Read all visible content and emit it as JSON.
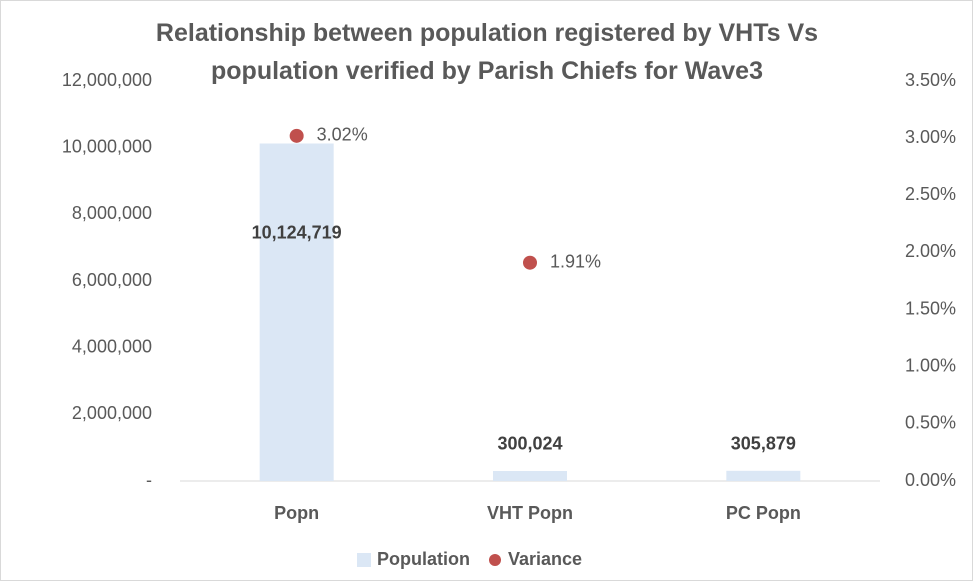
{
  "chart_data": {
    "type": "bar",
    "title": "Relationship between population registered by VHTs Vs population verified by Parish Chiefs for Wave3",
    "categories": [
      "Popn",
      "VHT Popn",
      "PC Popn"
    ],
    "series": [
      {
        "name": "Population",
        "color": "#dbe7f5",
        "values": [
          10124719,
          300024,
          305879
        ],
        "value_labels": [
          "10,124,719",
          "300,024",
          "305,879"
        ]
      },
      {
        "name": "Variance",
        "color": "#c0504d",
        "type": "scatter",
        "axis": "y2",
        "values": [
          3.02,
          1.91,
          null
        ],
        "value_labels": [
          "3.02%",
          "1.91%",
          null
        ]
      }
    ],
    "ylim": [
      0,
      12000000
    ],
    "yticks": [
      {
        "value": 0,
        "label": "-"
      },
      {
        "value": 2000000,
        "label": "2,000,000"
      },
      {
        "value": 4000000,
        "label": "4,000,000"
      },
      {
        "value": 6000000,
        "label": "6,000,000"
      },
      {
        "value": 8000000,
        "label": "8,000,000"
      },
      {
        "value": 10000000,
        "label": "10,000,000"
      },
      {
        "value": 12000000,
        "label": "12,000,000"
      }
    ],
    "y2lim": [
      0,
      3.5
    ],
    "y2ticks": [
      {
        "value": 0,
        "label": "0.00%"
      },
      {
        "value": 0.5,
        "label": "0.50%"
      },
      {
        "value": 1,
        "label": "1.00%"
      },
      {
        "value": 1.5,
        "label": "1.50%"
      },
      {
        "value": 2,
        "label": "2.00%"
      },
      {
        "value": 2.5,
        "label": "2.50%"
      },
      {
        "value": 3,
        "label": "3.00%"
      },
      {
        "value": 3.5,
        "label": "3.50%"
      }
    ],
    "grid": false,
    "legend": "bottom"
  }
}
